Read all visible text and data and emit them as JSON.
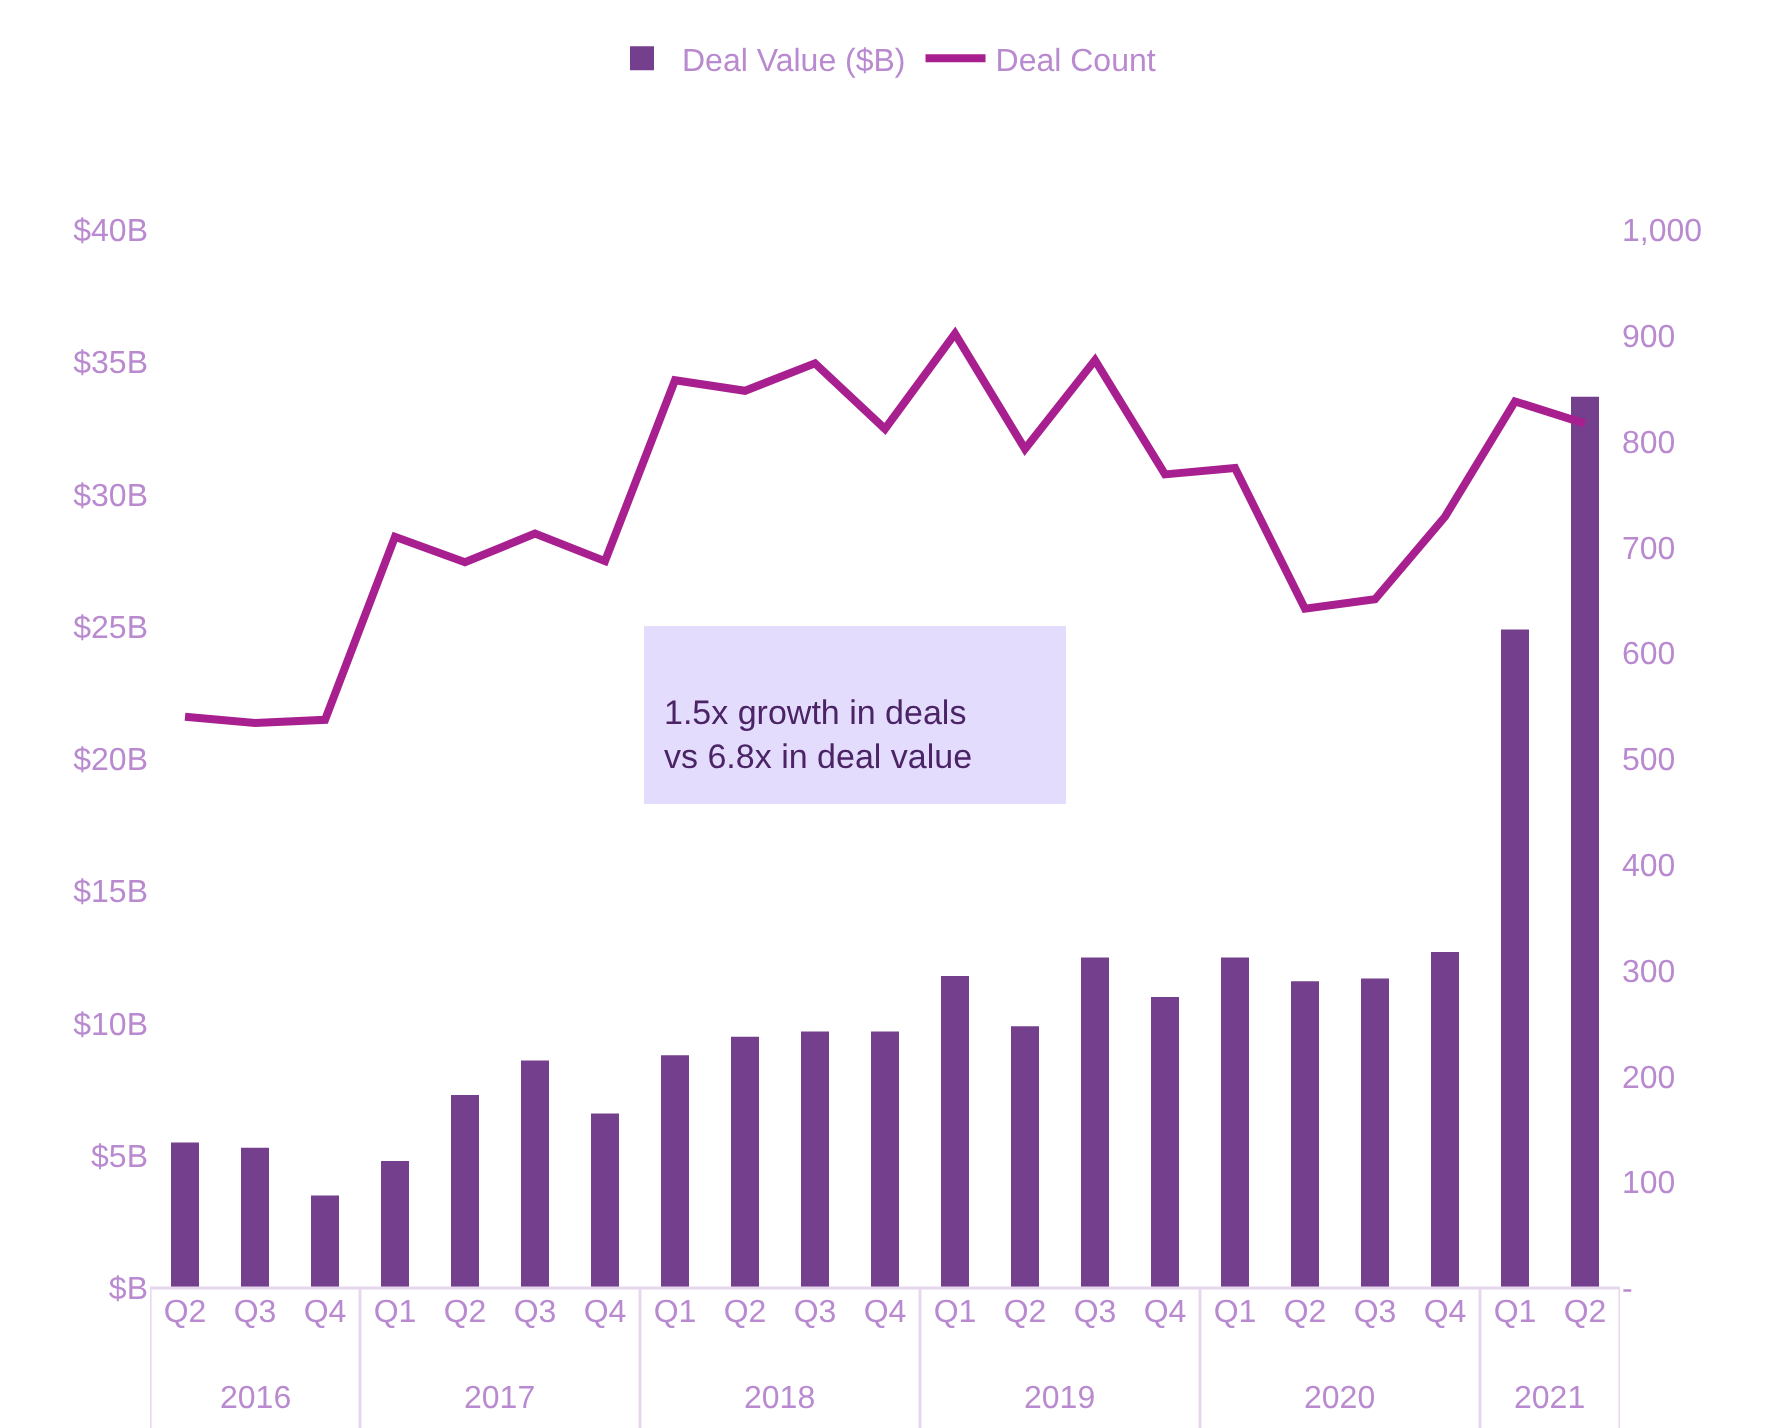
{
  "chart_data": {
    "type": "bar",
    "categories": [
      "Q2",
      "Q3",
      "Q4",
      "Q1",
      "Q2",
      "Q3",
      "Q4",
      "Q1",
      "Q2",
      "Q3",
      "Q4",
      "Q1",
      "Q2",
      "Q3",
      "Q4",
      "Q1",
      "Q2",
      "Q3",
      "Q4",
      "Q1",
      "Q2"
    ],
    "series": [
      {
        "name": "Deal Value ($B)",
        "color": "#743f8c",
        "values": [
          5.5,
          5.3,
          3.5,
          4.8,
          7.3,
          8.6,
          6.6,
          8.8,
          9.5,
          9.7,
          9.7,
          11.8,
          9.9,
          12.5,
          11.0,
          12.5,
          11.6,
          11.7,
          12.7,
          24.9,
          33.7
        ]
      },
      {
        "name": "Deal Count",
        "type": "line",
        "axis": "y2",
        "color": "#a8208f",
        "values": [
          540,
          534,
          537,
          710,
          686,
          713,
          687,
          858,
          848,
          874,
          812,
          902,
          793,
          877,
          769,
          775,
          642,
          651,
          729,
          838,
          817
        ]
      }
    ],
    "ylim": [
      0,
      40
    ],
    "yticks": [
      {
        "value": 0,
        "label": "$B"
      },
      {
        "value": 5,
        "label": "$5B"
      },
      {
        "value": 10,
        "label": "$10B"
      },
      {
        "value": 15,
        "label": "$15B"
      },
      {
        "value": 20,
        "label": "$20B"
      },
      {
        "value": 25,
        "label": "$25B"
      },
      {
        "value": 30,
        "label": "$30B"
      },
      {
        "value": 35,
        "label": "$35B"
      },
      {
        "value": 40,
        "label": "$40B"
      }
    ],
    "y2lim": [
      0,
      1000
    ],
    "y2ticks": [
      {
        "value": 0,
        "label": "-"
      },
      100,
      200,
      300,
      400,
      500,
      600,
      700,
      800,
      900,
      {
        "value": 1000,
        "label": "1,000"
      }
    ],
    "grid": false,
    "legend": "top",
    "marker": "none",
    "annotations": [
      "1.5x growth in deals\nvs 6.8x in deal value",
      "2016",
      "2017",
      "2018",
      "2019",
      "2020",
      "2021"
    ]
  }
}
